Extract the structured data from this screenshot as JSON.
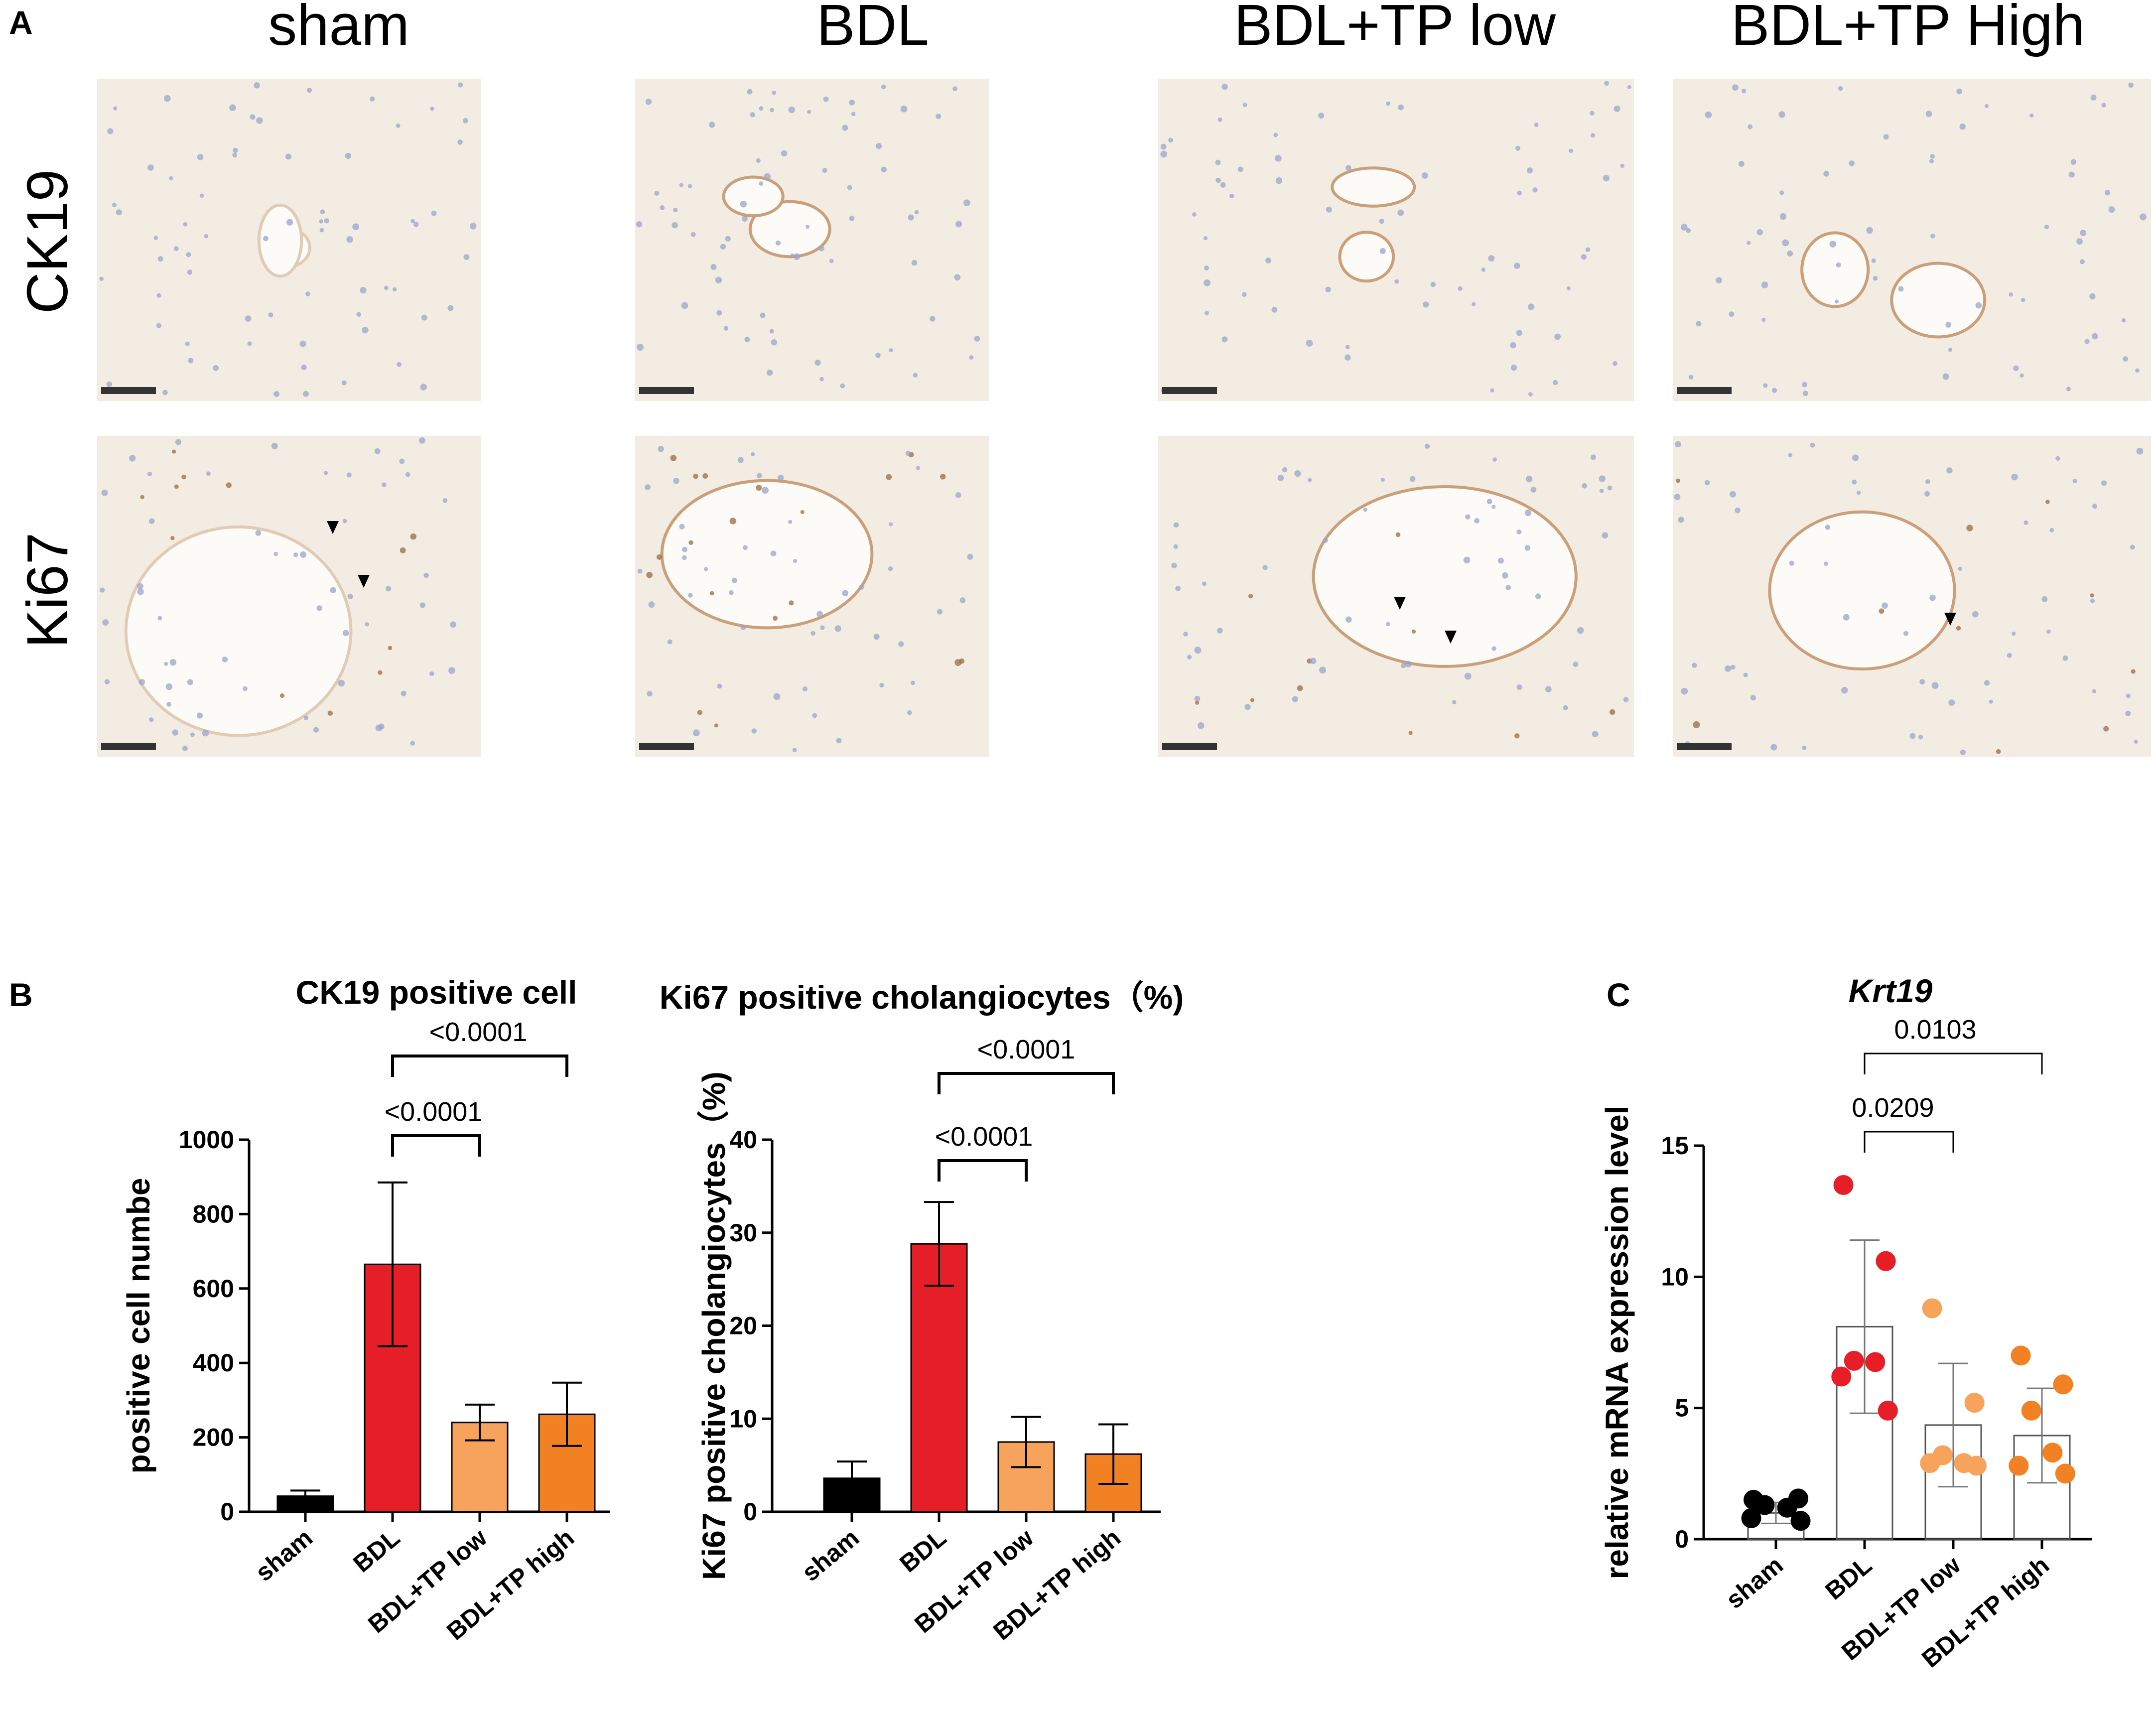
{
  "panels": {
    "A": "A",
    "B": "B",
    "C": "C"
  },
  "micrographs": {
    "groups": [
      "sham",
      "BDL",
      "BDL+TP low",
      "BDL+TP High"
    ],
    "rows": [
      "CK19",
      "Ki67"
    ],
    "tissue_color": "#f3ece3",
    "nuclei_color": "#9aa5c8",
    "stain_color": "#9a6b45"
  },
  "colors": {
    "sham": "#000000",
    "BDL": "#e61e27",
    "BDL+TP low": "#f7a35c",
    "BDL+TP high": "#f28123"
  },
  "chart_data": [
    {
      "type": "bar",
      "title": "CK19 positive cell",
      "xlabel": "",
      "ylabel": "positive cell numbe",
      "categories": [
        "sham",
        "BDL",
        "BDL+TP low",
        "BDL+TP high"
      ],
      "values": [
        42,
        665,
        240,
        262
      ],
      "errors": [
        15,
        220,
        48,
        85
      ],
      "ylim": [
        0,
        1000
      ],
      "yticks": [
        0,
        200,
        400,
        600,
        800,
        1000
      ],
      "comparisons": [
        {
          "from": "BDL",
          "to": "BDL+TP low",
          "label": "<0.0001"
        },
        {
          "from": "BDL",
          "to": "BDL+TP high",
          "label": "<0.0001"
        }
      ]
    },
    {
      "type": "bar",
      "title": "Ki67 positive cholangiocytes（%)",
      "xlabel": "",
      "ylabel": "Ki67 positive cholangiocytes（%)",
      "categories": [
        "sham",
        "BDL",
        "BDL+TP low",
        "BDL+TP high"
      ],
      "values": [
        3.6,
        28.8,
        7.5,
        6.2
      ],
      "errors": [
        1.8,
        4.5,
        2.7,
        3.2
      ],
      "ylim": [
        0,
        40
      ],
      "yticks": [
        0,
        10,
        20,
        30,
        40
      ],
      "comparisons": [
        {
          "from": "BDL",
          "to": "BDL+TP low",
          "label": "<0.0001"
        },
        {
          "from": "BDL",
          "to": "BDL+TP high",
          "label": "<0.0001"
        }
      ]
    },
    {
      "type": "scatter",
      "title": "Krt19",
      "xlabel": "",
      "ylabel": "relative mRNA expression level",
      "categories": [
        "sham",
        "BDL",
        "BDL+TP low",
        "BDL+TP high"
      ],
      "means": [
        1.0,
        8.1,
        4.35,
        3.95
      ],
      "sd": [
        0.4,
        3.3,
        2.35,
        1.8
      ],
      "points": [
        [
          1.5,
          1.55,
          1.3,
          1.2,
          0.8,
          0.7
        ],
        [
          13.5,
          10.6,
          6.8,
          6.75,
          6.2,
          4.9
        ],
        [
          8.8,
          5.2,
          3.2,
          2.9,
          2.9,
          2.8
        ],
        [
          7.0,
          5.9,
          4.9,
          3.3,
          2.8,
          2.5
        ]
      ],
      "ylim": [
        0,
        15
      ],
      "yticks": [
        0,
        5,
        10,
        15
      ],
      "comparisons": [
        {
          "from": "BDL",
          "to": "BDL+TP low",
          "label": "0.0209"
        },
        {
          "from": "BDL",
          "to": "BDL+TP high",
          "label": "0.0103"
        }
      ]
    }
  ]
}
